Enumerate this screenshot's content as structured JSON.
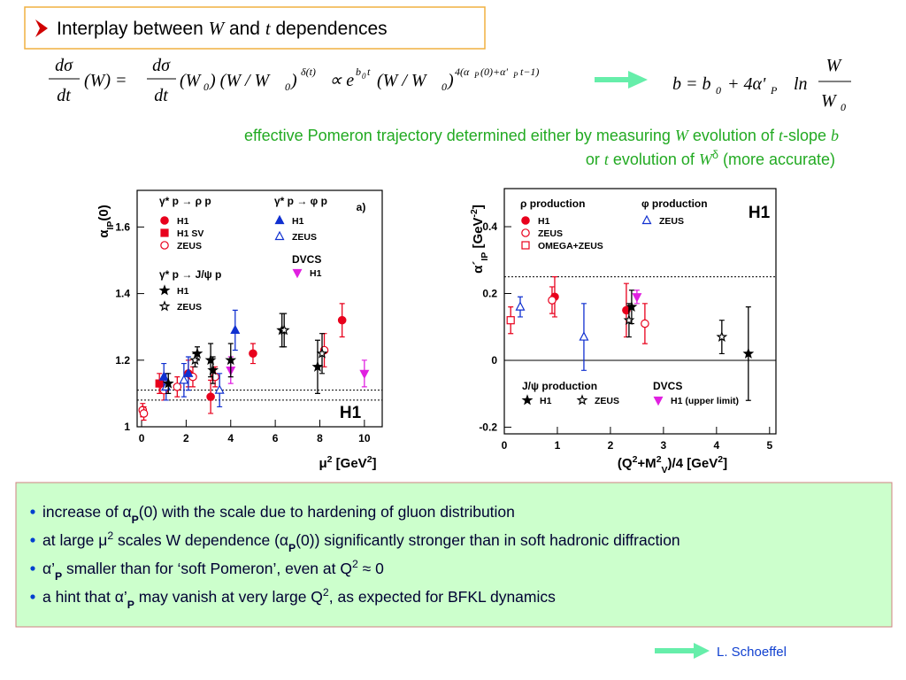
{
  "title": [
    {
      "text": "Interplay between "
    },
    {
      "text": "W",
      "style": "italic"
    },
    {
      "text": " and "
    },
    {
      "text": "t",
      "style": "italic"
    },
    {
      "text": " dependences"
    }
  ],
  "formula_left": [
    "dσ",
    "dt",
    "(W) =",
    "dσ",
    "dt",
    "(W",
    "0",
    ") (W / W",
    "0",
    ")",
    "δ(t)",
    "∝ e",
    "b",
    "0",
    "t",
    "(W / W",
    "0",
    ")",
    "4(α",
    "P",
    "(0)+α'",
    "P",
    "t−1)"
  ],
  "formula_right": [
    "b = b",
    "0",
    "+ 4α'",
    "P",
    "ln",
    "W",
    "W",
    "0"
  ],
  "note_lines": [
    [
      {
        "text": "effective  Pomeron trajectory determined either by measuring "
      },
      {
        "text": "W",
        "style": "italic"
      },
      {
        "text": " evolution of "
      },
      {
        "text": "t",
        "style": "italic"
      },
      {
        "text": "-slope "
      },
      {
        "text": "b",
        "style": "italic"
      }
    ],
    [
      {
        "text": "or "
      },
      {
        "text": "t",
        "style": "italic"
      },
      {
        "text": " evolution of "
      },
      {
        "text": "W",
        "style": "italic"
      },
      {
        "text": "δ",
        "style": "sup"
      },
      {
        "text": " (more accurate)"
      }
    ]
  ],
  "chart_data": [
    {
      "type": "scatter",
      "panel_label": "a)",
      "big_label": "H1",
      "x_label": [
        {
          "text": "μ"
        },
        {
          "text": "2",
          "style": "sup"
        },
        {
          "text": " [GeV"
        },
        {
          "text": "2",
          "style": "sup"
        },
        {
          "text": "]"
        }
      ],
      "y_label": [
        {
          "text": "α"
        },
        {
          "text": "IP",
          "style": "sub"
        },
        {
          "text": "(0)"
        }
      ],
      "xlim": [
        -0.2,
        10.8
      ],
      "ylim": [
        1,
        1.71
      ],
      "xticks": [
        0,
        2,
        4,
        6,
        8,
        10
      ],
      "yticks": [
        1,
        1.2,
        1.4,
        1.6
      ],
      "reference_lines": [
        {
          "value": 1.11,
          "style": "dotted"
        },
        {
          "value": 1.08,
          "style": "dotted"
        }
      ],
      "groups": [
        {
          "title": "γ* p → ρ p",
          "series": [
            {
              "name": "H1",
              "color": "#e8001c",
              "marker": "circle",
              "x": [
                2.1,
                3.1,
                5.0,
                9.0
              ],
              "values": [
                1.16,
                1.09,
                1.22,
                1.32
              ],
              "errors": [
                0.04,
                0.05,
                0.03,
                0.05
              ]
            },
            {
              "name": "H1 SV",
              "color": "#e8001c",
              "marker": "square",
              "x": [
                0.8
              ],
              "values": [
                1.13
              ],
              "errors": [
                0.03
              ]
            },
            {
              "name": "ZEUS",
              "color": "#e8001c",
              "marker": "open-circle",
              "x": [
                0.05,
                0.1,
                1.0,
                1.6,
                2.3,
                3.3,
                8.2
              ],
              "values": [
                1.05,
                1.04,
                1.11,
                1.12,
                1.15,
                1.15,
                1.23
              ],
              "errors": [
                0.02,
                0.02,
                0.03,
                0.03,
                0.03,
                0.03,
                0.05
              ]
            }
          ]
        },
        {
          "title": "γ* p → φ p",
          "series": [
            {
              "name": "H1",
              "color": "#1030d0",
              "marker": "triangle",
              "x": [
                1.0,
                2.1,
                4.2
              ],
              "values": [
                1.15,
                1.16,
                1.29
              ],
              "errors": [
                0.04,
                0.05,
                0.06
              ]
            },
            {
              "name": "ZEUS",
              "color": "#1030d0",
              "marker": "open-triangle",
              "x": [
                1.1,
                1.9,
                3.5
              ],
              "values": [
                1.12,
                1.14,
                1.11
              ],
              "errors": [
                0.04,
                0.05,
                0.05
              ]
            }
          ]
        },
        {
          "title": "DVCS",
          "series": [
            {
              "name": "H1",
              "color": "#e020e0",
              "marker": "triangle-down",
              "x": [
                4.0,
                10.0
              ],
              "values": [
                1.17,
                1.16
              ],
              "errors": [
                0.04,
                0.04
              ]
            }
          ]
        },
        {
          "title": "γ* p → J/ψ p",
          "series": [
            {
              "name": "H1",
              "color": "#000000",
              "marker": "star",
              "x": [
                1.2,
                2.5,
                3.1,
                3.2,
                4.0,
                6.3,
                7.9
              ],
              "values": [
                1.13,
                1.22,
                1.2,
                1.17,
                1.2,
                1.29,
                1.18
              ],
              "errors": [
                0.03,
                0.02,
                0.05,
                0.04,
                0.05,
                0.05,
                0.08
              ]
            },
            {
              "name": "ZEUS",
              "color": "#000000",
              "marker": "open-star",
              "x": [
                2.4,
                6.4,
                8.1
              ],
              "values": [
                1.2,
                1.29,
                1.22
              ],
              "errors": [
                0.02,
                0.05,
                0.06
              ]
            }
          ]
        }
      ]
    },
    {
      "type": "scatter",
      "big_label": "H1",
      "x_label": [
        {
          "text": "(Q"
        },
        {
          "text": "2",
          "style": "sup"
        },
        {
          "text": "+M"
        },
        {
          "text": "2",
          "style": "sup"
        },
        {
          "text": "V",
          "style": "sub"
        },
        {
          "text": ")/4 [GeV"
        },
        {
          "text": "2",
          "style": "sup"
        },
        {
          "text": "]"
        }
      ],
      "y_label": [
        {
          "text": "α´"
        },
        {
          "text": "IP",
          "style": "sub"
        },
        {
          "text": " [GeV"
        },
        {
          "text": "-2",
          "style": "sup"
        },
        {
          "text": "]"
        }
      ],
      "xlim": [
        0,
        5.12
      ],
      "ylim": [
        -0.22,
        0.514
      ],
      "xticks": [
        0,
        1,
        2,
        3,
        4,
        5
      ],
      "yticks": [
        -0.2,
        0,
        0.2,
        0.4
      ],
      "reference_lines": [
        {
          "value": 0.25,
          "style": "dotted"
        },
        {
          "value": 0,
          "style": "solid"
        }
      ],
      "groups": [
        {
          "title": "ρ production",
          "series": [
            {
              "name": "H1",
              "color": "#e8001c",
              "marker": "circle",
              "x": [
                0.95,
                2.3
              ],
              "values": [
                0.19,
                0.15
              ],
              "errors": [
                0.06,
                0.08
              ]
            },
            {
              "name": "ZEUS",
              "color": "#e8001c",
              "marker": "open-circle",
              "x": [
                0.9,
                2.65
              ],
              "values": [
                0.18,
                0.11
              ],
              "errors": [
                0.04,
                0.06
              ]
            },
            {
              "name": "OMEGA+ZEUS",
              "color": "#e8001c",
              "marker": "open-square",
              "x": [
                0.12
              ],
              "values": [
                0.12
              ],
              "errors": [
                0.04
              ]
            }
          ]
        },
        {
          "title": "φ production",
          "series": [
            {
              "name": "ZEUS",
              "color": "#1030d0",
              "marker": "open-triangle",
              "x": [
                0.3,
                1.5
              ],
              "values": [
                0.16,
                0.07
              ],
              "errors": [
                0.03,
                0.1
              ]
            }
          ]
        },
        {
          "title": "J/ψ production",
          "series": [
            {
              "name": "H1",
              "color": "#000000",
              "marker": "star",
              "x": [
                2.4,
                4.6
              ],
              "values": [
                0.16,
                0.02
              ],
              "errors": [
                0.05,
                0.14
              ]
            },
            {
              "name": "ZEUS",
              "color": "#000000",
              "marker": "open-star",
              "x": [
                2.35,
                4.1
              ],
              "values": [
                0.12,
                0.07
              ],
              "errors": [
                0.05,
                0.05
              ]
            }
          ]
        },
        {
          "title": "DVCS",
          "series": [
            {
              "name": "H1 (upper limit)",
              "color": "#e020e0",
              "marker": "triangle-down",
              "x": [
                2.5
              ],
              "values": [
                0.19
              ],
              "errors": [
                0.02
              ]
            }
          ]
        }
      ]
    }
  ],
  "bullets": [
    [
      {
        "text": "increase of α"
      },
      {
        "text": "P",
        "style": "bold-sub"
      },
      {
        "text": "(0) with the scale due to hardening  of gluon distribution"
      }
    ],
    [
      {
        "text": "at large μ"
      },
      {
        "text": "2",
        "style": "sup"
      },
      {
        "text": " scales W dependence  (α"
      },
      {
        "text": "P",
        "style": "bold-sub"
      },
      {
        "text": "(0)) significantly stronger than in soft hadronic diffraction"
      }
    ],
    [
      {
        "text": "α’"
      },
      {
        "text": "P",
        "style": "bold-sub"
      },
      {
        "text": " smaller than for ‘soft Pomeron’, even at Q"
      },
      {
        "text": "2",
        "style": "sup"
      },
      {
        "text": " ≈ 0"
      }
    ],
    [
      {
        "text": "a hint that α’"
      },
      {
        "text": "P",
        "style": "bold-sub"
      },
      {
        "text": " may vanish at very large Q"
      },
      {
        "text": "2",
        "style": "sup"
      },
      {
        "text": ","
      },
      {
        "text": " as expected for BFKL dynamics"
      }
    ]
  ],
  "footer": "L. Schoeffel"
}
